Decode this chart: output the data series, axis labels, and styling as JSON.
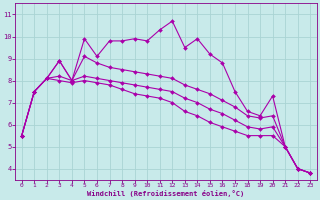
{
  "xlabel": "Windchill (Refroidissement éolien,°C)",
  "background_color": "#c8eaea",
  "grid_color": "#aad4d4",
  "line_color": "#aa00aa",
  "xlim": [
    -0.5,
    23.5
  ],
  "ylim": [
    3.5,
    11.5
  ],
  "xticks": [
    0,
    1,
    2,
    3,
    4,
    5,
    6,
    7,
    8,
    9,
    10,
    11,
    12,
    13,
    14,
    15,
    16,
    17,
    18,
    19,
    20,
    21,
    22,
    23
  ],
  "yticks": [
    4,
    5,
    6,
    7,
    8,
    9,
    10,
    11
  ],
  "line1": [
    5.5,
    7.5,
    8.1,
    8.9,
    8.0,
    9.9,
    9.1,
    9.8,
    9.8,
    9.9,
    9.8,
    10.3,
    10.7,
    9.5,
    9.9,
    9.2,
    8.8,
    7.5,
    6.6,
    6.4,
    7.3,
    5.0,
    4.0,
    3.8
  ],
  "line2": [
    5.5,
    7.5,
    8.1,
    8.9,
    8.0,
    9.1,
    8.8,
    8.6,
    8.5,
    8.4,
    8.3,
    8.2,
    8.1,
    7.8,
    7.6,
    7.4,
    7.1,
    6.8,
    6.4,
    6.3,
    6.4,
    5.0,
    4.0,
    3.8
  ],
  "line3": [
    5.5,
    7.5,
    8.1,
    8.2,
    8.0,
    8.2,
    8.1,
    8.0,
    7.9,
    7.8,
    7.7,
    7.6,
    7.5,
    7.2,
    7.0,
    6.7,
    6.5,
    6.2,
    5.9,
    5.8,
    5.9,
    5.0,
    4.0,
    3.8
  ],
  "line4": [
    5.5,
    7.5,
    8.1,
    8.0,
    7.9,
    8.0,
    7.9,
    7.8,
    7.6,
    7.4,
    7.3,
    7.2,
    7.0,
    6.6,
    6.4,
    6.1,
    5.9,
    5.7,
    5.5,
    5.5,
    5.5,
    5.0,
    4.0,
    3.8
  ]
}
